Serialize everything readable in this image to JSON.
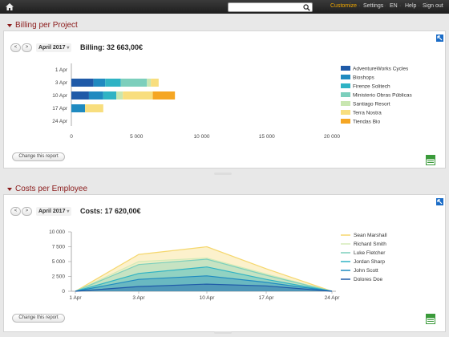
{
  "topbar": {
    "search_value": "",
    "links": [
      "Customize",
      "Settings",
      "EN",
      "Help",
      "Sign out"
    ]
  },
  "billing": {
    "section_title": "Billing per Project",
    "prev": "<",
    "next": ">",
    "period": "April 2017",
    "total_label": "Billing: 32 663,00€",
    "change_label": "Change this report",
    "chart_data": {
      "type": "bar",
      "orientation": "horizontal",
      "stacked": true,
      "categories": [
        "1 Apr",
        "3 Apr",
        "10 Apr",
        "17 Apr",
        "24 Apr"
      ],
      "xlim": [
        0,
        20000
      ],
      "xticks": [
        "0",
        "5 000",
        "10 000",
        "15 000",
        "20 000"
      ],
      "legend_position": "right",
      "series": [
        {
          "name": "AdventureWorks Cycles",
          "color": "#1f5aa8",
          "values": [
            0,
            1700,
            1350,
            0,
            0
          ]
        },
        {
          "name": "Bioshops",
          "color": "#1f8ac0",
          "values": [
            0,
            900,
            1100,
            1050,
            0
          ]
        },
        {
          "name": "Firenze Solitech",
          "color": "#2fb3c4",
          "values": [
            0,
            1200,
            1000,
            0,
            0
          ]
        },
        {
          "name": "Ministerio Obras Públicas",
          "color": "#7ccfbc",
          "values": [
            0,
            2000,
            0,
            0,
            0
          ]
        },
        {
          "name": "Santiago Resort",
          "color": "#c8e6b0",
          "values": [
            0,
            300,
            500,
            0,
            0
          ]
        },
        {
          "name": "Terra Nostra",
          "color": "#f8de7e",
          "values": [
            0,
            600,
            2300,
            1400,
            0
          ]
        },
        {
          "name": "Tiendas Bio",
          "color": "#f5a623",
          "values": [
            0,
            0,
            1700,
            0,
            0
          ]
        }
      ]
    }
  },
  "costs": {
    "section_title": "Costs per Employee",
    "prev": "<",
    "next": ">",
    "period": "April 2017",
    "total_label": "Costs: 17 620,00€",
    "change_label": "Change this report",
    "chart_data": {
      "type": "area",
      "x": [
        "1 Apr",
        "3 Apr",
        "10 Apr",
        "17 Apr",
        "24 Apr"
      ],
      "ylim": [
        0,
        10000
      ],
      "yticks": [
        "0",
        "2 500",
        "5 000",
        "7 500",
        "10 000"
      ],
      "legend_position": "right",
      "series": [
        {
          "name": "Sean Marshall",
          "color": "#f5d76e",
          "values": [
            0,
            6200,
            7500,
            3800,
            0
          ]
        },
        {
          "name": "Richard Smith",
          "color": "#d4eab8",
          "values": [
            0,
            5000,
            5600,
            2900,
            0
          ]
        },
        {
          "name": "Luke Fletcher",
          "color": "#7ccfbc",
          "values": [
            0,
            4500,
            5400,
            2700,
            0
          ]
        },
        {
          "name": "Jordan Sharp",
          "color": "#2fb3c4",
          "values": [
            0,
            3000,
            4100,
            2000,
            0
          ]
        },
        {
          "name": "John Scott",
          "color": "#1f8ac0",
          "values": [
            0,
            2000,
            2600,
            1500,
            0
          ]
        },
        {
          "name": "Dolores Doe",
          "color": "#1f5aa8",
          "values": [
            0,
            800,
            1200,
            900,
            0
          ]
        }
      ]
    }
  }
}
